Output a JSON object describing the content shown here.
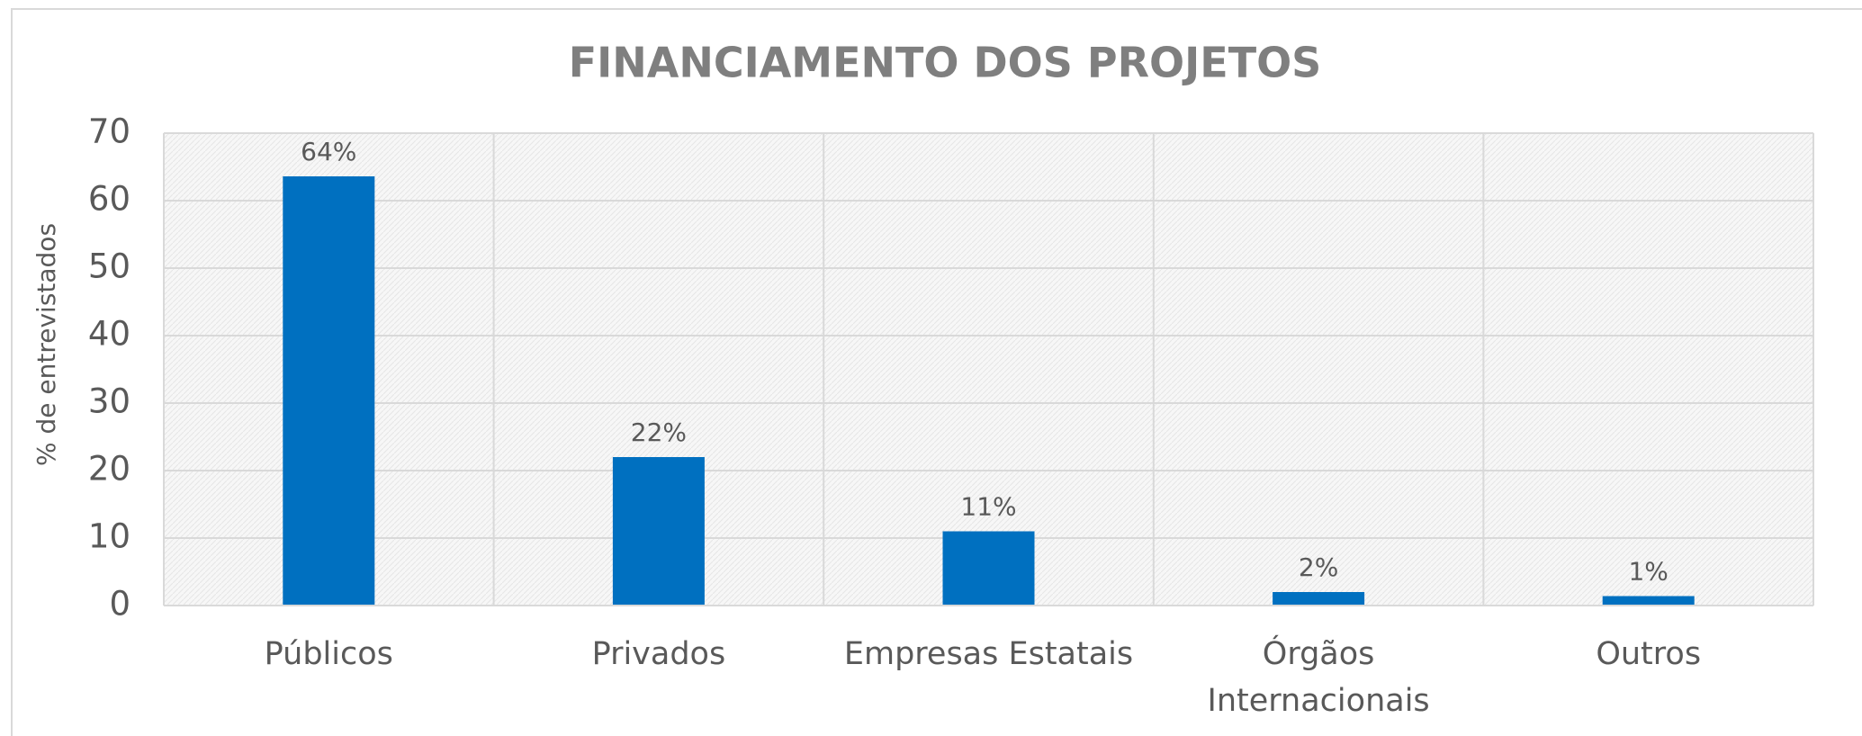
{
  "chart_data": {
    "type": "bar",
    "title": "FINANCIAMENTO DOS PROJETOS",
    "y_label": "% de entrevistados",
    "categories": [
      "Públicos",
      "Privados",
      "Empresas Estatais",
      "Órgãos Internacionais",
      "Outros"
    ],
    "values": [
      63.6,
      22,
      11,
      2,
      1.4
    ],
    "value_labels": [
      "64%",
      "22%",
      "11%",
      "2%",
      "1%"
    ],
    "color": "#0070c0",
    "ylim": [
      0,
      70
    ],
    "yticks": [
      0,
      10,
      20,
      30,
      40,
      50,
      60,
      70
    ],
    "grid": true
  }
}
